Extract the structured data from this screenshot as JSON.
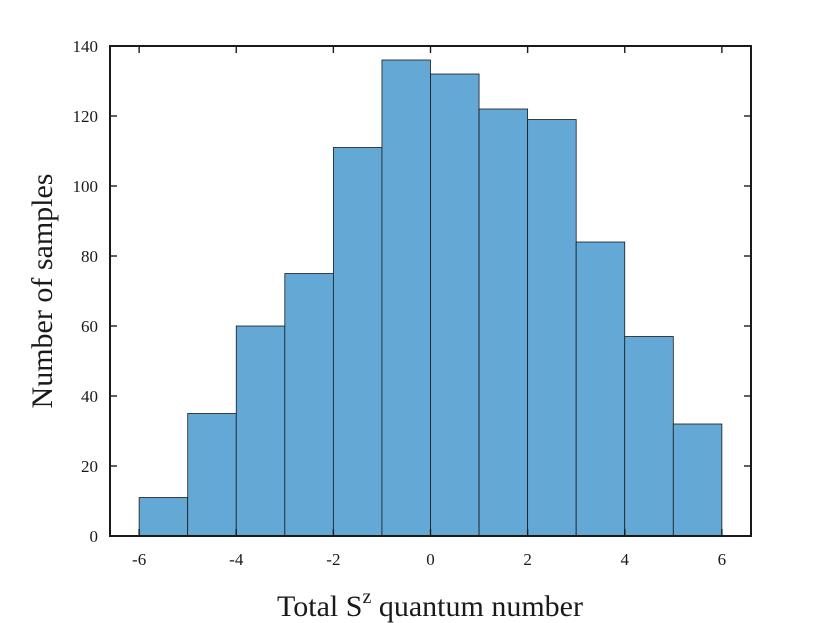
{
  "chart_data": {
    "type": "bar",
    "bin_edges": [
      -6,
      -5,
      -4,
      -3,
      -2,
      -1,
      0,
      1,
      2,
      3,
      4,
      5,
      6
    ],
    "values": [
      11,
      35,
      60,
      75,
      111,
      136,
      132,
      122,
      119,
      84,
      57,
      32
    ],
    "xlabel": "Total S",
    "xlabel_superscript": "z",
    "xlabel_suffix": " quantum number",
    "ylabel": "Number of samples",
    "xlim": [
      -6.6,
      6.6
    ],
    "ylim": [
      0,
      140
    ],
    "x_ticks": [
      -6,
      -4,
      -2,
      0,
      2,
      4,
      6
    ],
    "x_tick_labels": [
      "-6",
      "-4",
      "-2",
      "0",
      "2",
      "4",
      "6"
    ],
    "y_ticks": [
      0,
      20,
      40,
      60,
      80,
      100,
      120,
      140
    ],
    "y_tick_labels": [
      "0",
      "20",
      "40",
      "60",
      "80",
      "100",
      "120",
      "140"
    ],
    "grid": false,
    "bar_color": "#64a8d6",
    "edge_color": "#1a1a1a"
  }
}
